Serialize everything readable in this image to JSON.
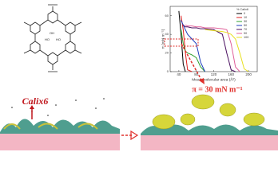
{
  "chart_data": {
    "type": "line",
    "y_label": "π (mN m⁻¹)",
    "x_label": "Mean molecular area (Å²)",
    "legend_title": "% Calix6",
    "x": [
      40,
      45,
      50,
      55,
      60,
      70,
      80,
      90,
      100,
      120,
      140,
      150,
      160,
      170,
      180,
      190,
      200
    ],
    "series": [
      {
        "name": "0",
        "color": "#000000",
        "values": [
          65,
          40,
          8,
          0,
          null,
          null,
          null,
          null,
          null,
          null,
          null,
          null,
          null,
          null,
          null,
          null,
          null
        ]
      },
      {
        "name": "10",
        "color": "#e02020",
        "values": [
          null,
          60,
          45,
          20,
          2,
          0,
          null,
          null,
          null,
          null,
          null,
          null,
          null,
          null,
          null,
          null,
          null
        ]
      },
      {
        "name": "30",
        "color": "#2ca02c",
        "values": [
          null,
          45,
          30,
          22,
          20,
          18,
          15,
          5,
          0,
          null,
          null,
          null,
          null,
          null,
          null,
          null,
          null
        ]
      },
      {
        "name": "50",
        "color": "#1f3fbf",
        "values": [
          null,
          55,
          50,
          45,
          40,
          35,
          30,
          10,
          0,
          null,
          null,
          null,
          null,
          null,
          null,
          null,
          null
        ]
      },
      {
        "name": "70",
        "color": "#4b1060",
        "values": [
          null,
          null,
          50,
          48,
          48,
          47,
          47,
          46,
          46,
          45,
          40,
          20,
          2,
          0,
          null,
          null,
          null
        ]
      },
      {
        "name": "90",
        "color": "#e0609a",
        "values": [
          null,
          null,
          null,
          50,
          49,
          49,
          48,
          48,
          47,
          47,
          46,
          45,
          30,
          5,
          0,
          null,
          null
        ]
      },
      {
        "name": "100",
        "color": "#e8e020",
        "values": [
          null,
          null,
          null,
          null,
          null,
          null,
          null,
          null,
          45,
          44,
          43,
          42,
          40,
          35,
          20,
          3,
          0
        ]
      }
    ],
    "xlim": [
      20,
      220
    ],
    "ylim": [
      0,
      70
    ],
    "xticks": [
      40,
      80,
      120,
      160,
      200
    ],
    "yticks": [
      0,
      20,
      40,
      60
    ],
    "legend": "upper right",
    "annotations": {
      "species": "Calix6",
      "pressure": "π = 30 mN m⁻¹"
    }
  }
}
